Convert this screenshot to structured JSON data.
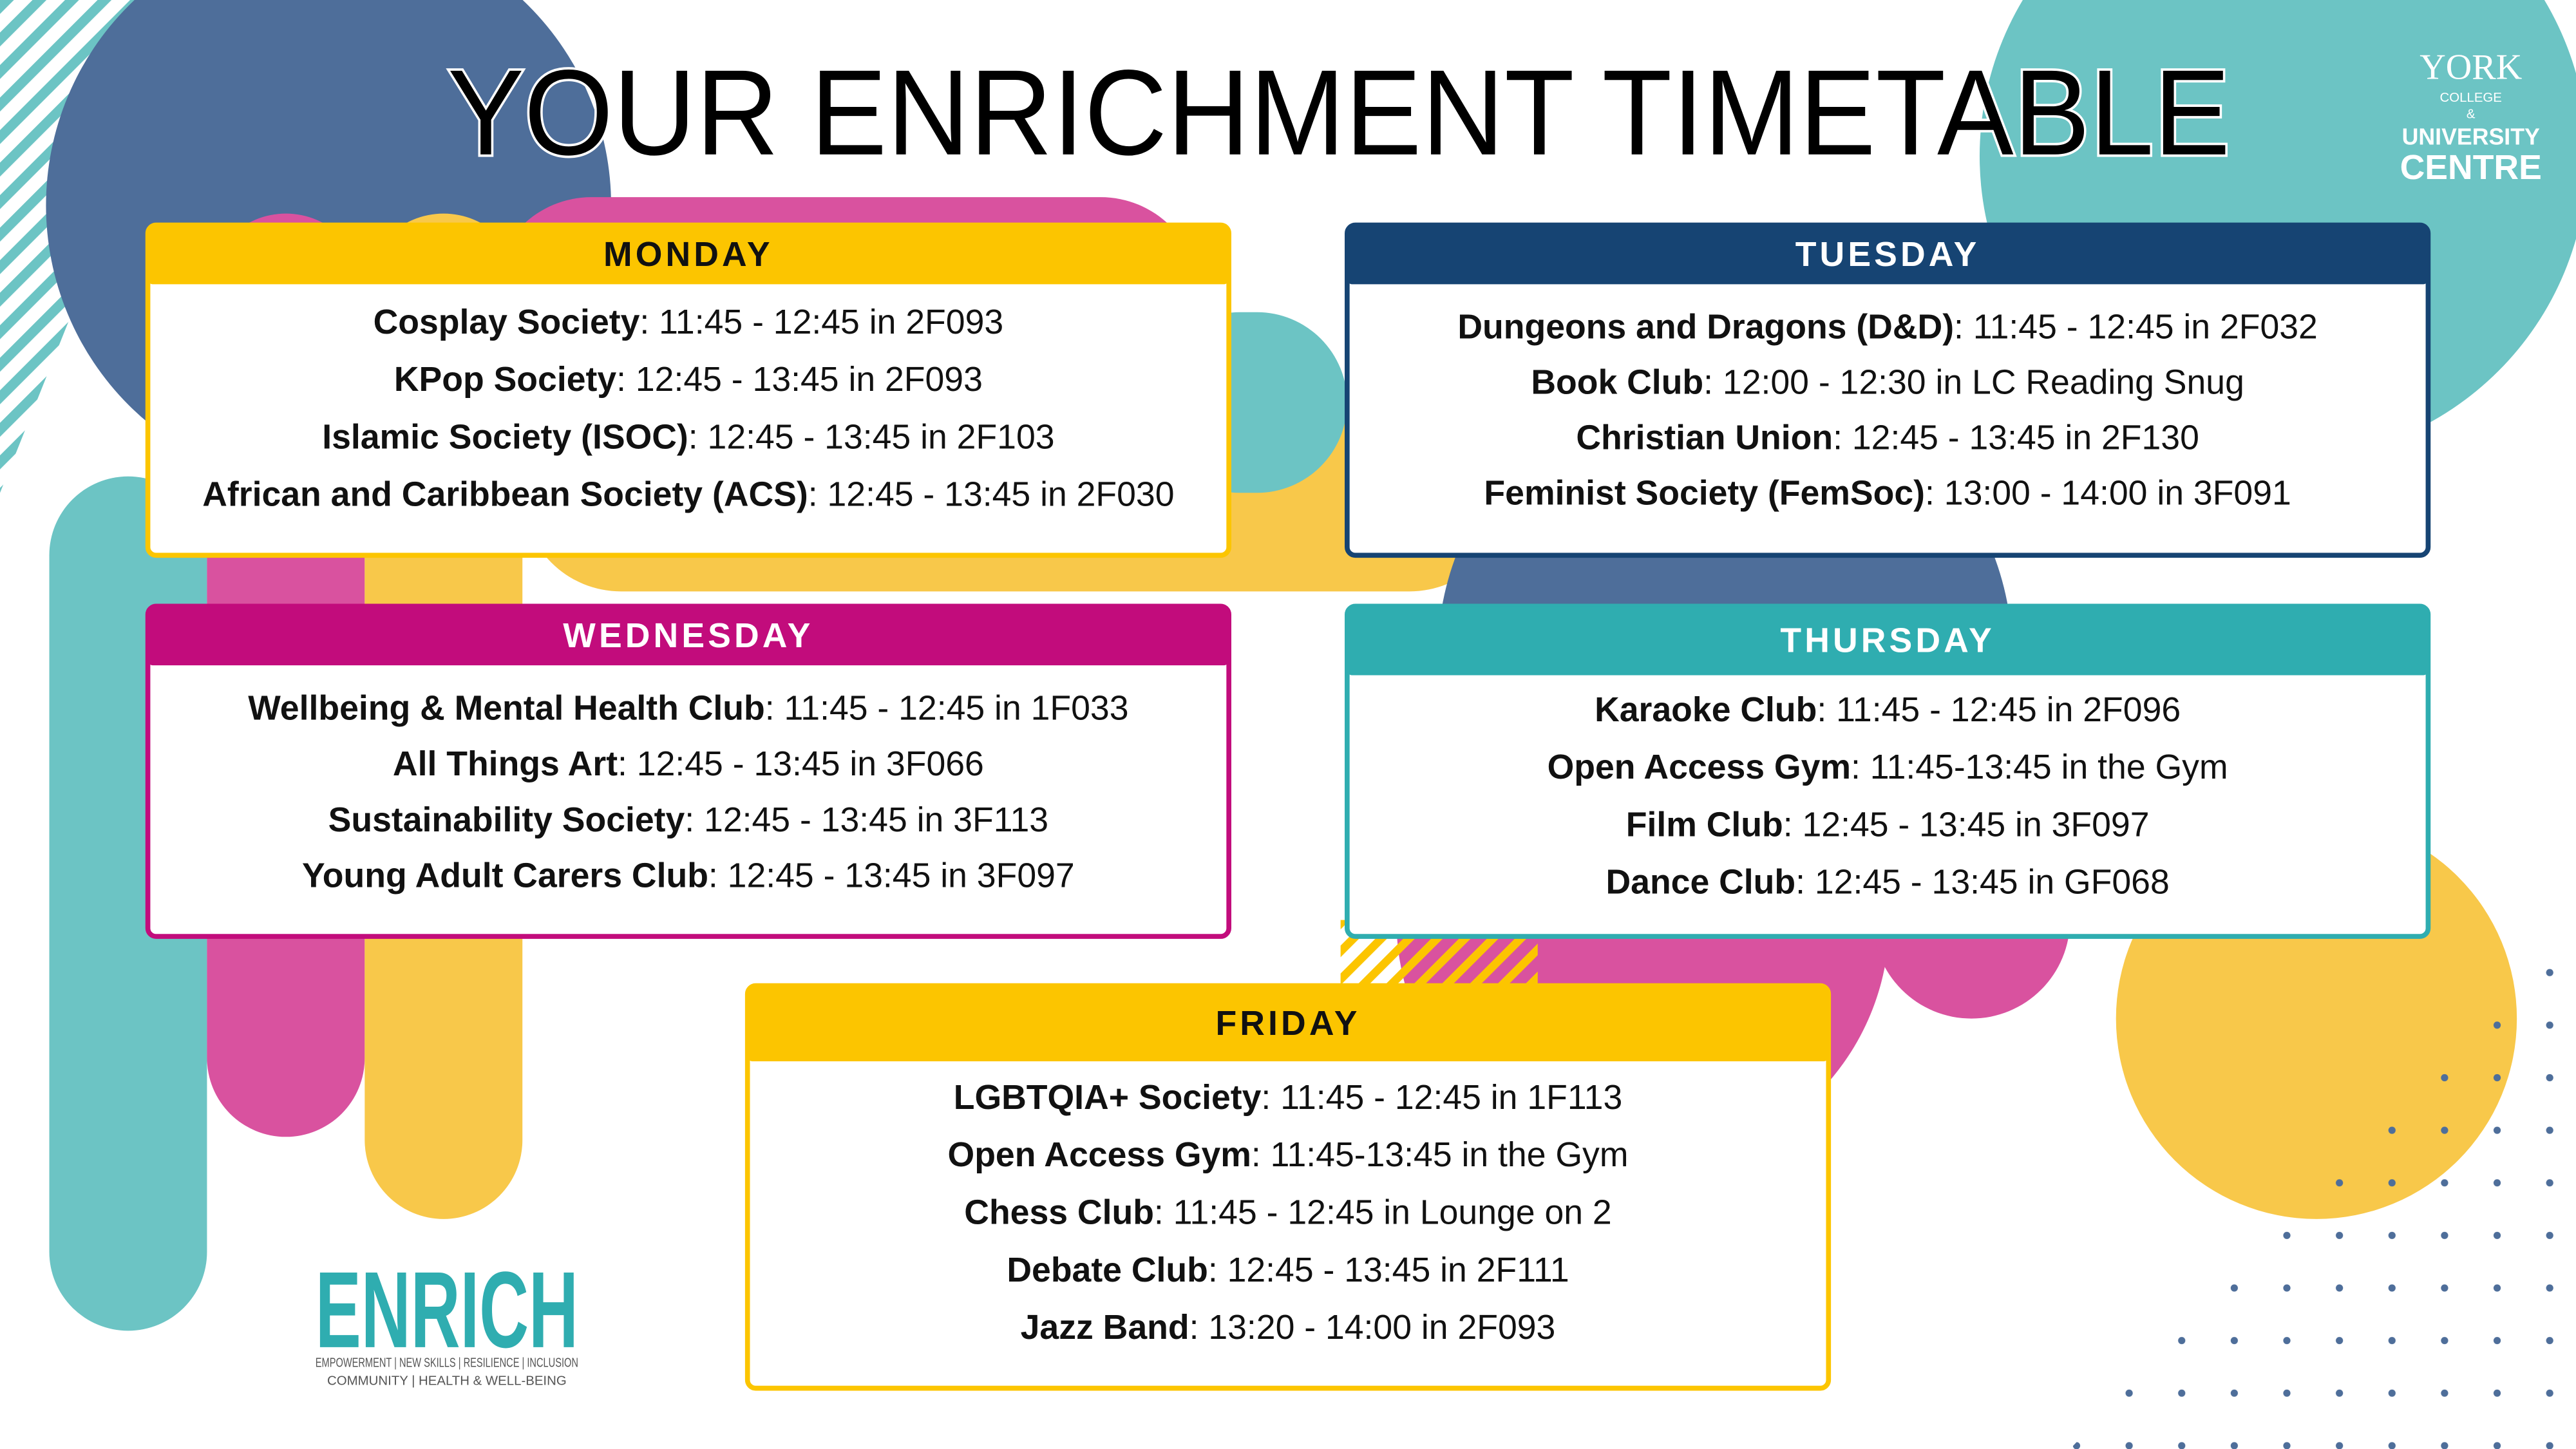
{
  "title": "YOUR ENRICHMENT TIMETABLE",
  "college_logo": {
    "line1": "YORK",
    "line2": "COLLEGE",
    "line3": "&",
    "line4": "UNIVERSITY",
    "line5": "CENTRE"
  },
  "enrich_logo": {
    "word": "ENRICH",
    "tagline1": "EMPOWERMENT | NEW SKILLS | RESILIENCE | INCLUSION",
    "tagline2": "COMMUNITY | HEALTH & WELL-BEING"
  },
  "days": [
    {
      "label": "MONDAY",
      "color": "#fcc500",
      "entries": [
        {
          "name": "Cosplay Society",
          "detail": ": 11:45 - 12:45 in 2F093"
        },
        {
          "name": "KPop Society",
          "detail": ": 12:45 - 13:45 in 2F093"
        },
        {
          "name": "Islamic Society (ISOC)",
          "detail": ": 12:45 - 13:45 in 2F103"
        },
        {
          "name": "African and Caribbean Society (ACS)",
          "detail": ": 12:45 - 13:45 in 2F030"
        }
      ]
    },
    {
      "label": "TUESDAY",
      "color": "#164473",
      "entries": [
        {
          "name": "Dungeons and Dragons (D&D)",
          "detail": ": 11:45 - 12:45 in 2F032"
        },
        {
          "name": "Book Club",
          "detail": ": 12:00 - 12:30 in LC Reading Snug"
        },
        {
          "name": "Christian Union",
          "detail": ": 12:45 - 13:45 in 2F130"
        },
        {
          "name": "Feminist Society (FemSoc)",
          "detail": ": 13:00 - 14:00 in 3F091"
        }
      ]
    },
    {
      "label": "WEDNESDAY",
      "color": "#c20c7c",
      "entries": [
        {
          "name": "Wellbeing & Mental Health Club",
          "detail": ": 11:45 - 12:45 in 1F033"
        },
        {
          "name": "All Things Art",
          "detail": ": 12:45 - 13:45 in 3F066"
        },
        {
          "name": "Sustainability Society",
          "detail": ": 12:45 - 13:45 in 3F113"
        },
        {
          "name": "Young Adult Carers Club",
          "detail": ": 12:45 - 13:45 in 3F097"
        }
      ]
    },
    {
      "label": "THURSDAY",
      "color": "#2fadb0",
      "entries": [
        {
          "name": "Karaoke Club",
          "detail": ": 11:45 - 12:45 in 2F096"
        },
        {
          "name": "Open Access Gym",
          "detail": ": 11:45-13:45 in the Gym"
        },
        {
          "name": "Film Club",
          "detail": ": 12:45 - 13:45 in 3F097"
        },
        {
          "name": "Dance Club",
          "detail": ": 12:45 - 13:45 in GF068"
        }
      ]
    },
    {
      "label": "FRIDAY",
      "color": "#fcc500",
      "entries": [
        {
          "name": "LGBTQIA+ Society",
          "detail": ": 11:45 - 12:45 in 1F113"
        },
        {
          "name": "Open Access Gym",
          "detail": ": 11:45-13:45 in the Gym"
        },
        {
          "name": "Chess Club",
          "detail": ": 11:45 - 12:45 in Lounge on 2"
        },
        {
          "name": "Debate Club",
          "detail": ": 12:45 - 13:45 in 2F111"
        },
        {
          "name": "Jazz Band",
          "detail": ": 13:20 - 14:00 in 2F093"
        }
      ]
    }
  ]
}
